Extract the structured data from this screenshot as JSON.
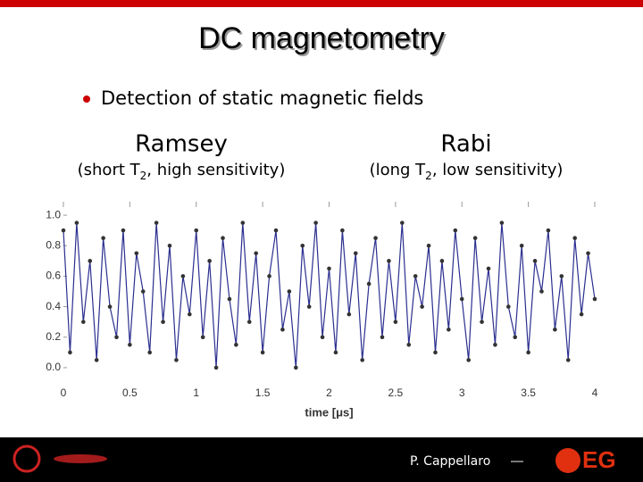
{
  "slide": {
    "title": "DC magnetometry",
    "bullet": "Detection of static magnetic fields",
    "columns": [
      {
        "heading": "Ramsey",
        "sub_prefix": "(short T",
        "sub_index": "2",
        "sub_suffix": ", high sensitivity)"
      },
      {
        "heading": "Rabi",
        "sub_prefix": "(long T",
        "sub_index": "2",
        "sub_suffix": ", low sensitivity)"
      }
    ],
    "author": "P. Cappellaro",
    "dash": "—",
    "logo_text": "EG"
  },
  "chart_data": {
    "type": "line",
    "x_label": "time [μs]",
    "xlim": [
      0,
      4
    ],
    "xticks": [
      0,
      0.5,
      1,
      1.5,
      2,
      2.5,
      3,
      3.5,
      4
    ],
    "ylim": [
      -0.1,
      1.1
    ],
    "yticks": [
      {
        "value": 0,
        "label": "0.0"
      },
      0.2,
      0.4,
      0.6,
      0.8,
      {
        "value": 1,
        "label": "1.0"
      }
    ],
    "x": [
      0,
      0.05,
      0.1,
      0.15,
      0.2,
      0.25,
      0.3,
      0.35,
      0.4,
      0.45,
      0.5,
      0.55,
      0.6,
      0.65,
      0.7,
      0.75,
      0.8,
      0.85,
      0.9,
      0.95,
      1,
      1.05,
      1.1,
      1.15,
      1.2,
      1.25,
      1.3,
      1.35,
      1.4,
      1.45,
      1.5,
      1.55,
      1.6,
      1.65,
      1.7,
      1.75,
      1.8,
      1.85,
      1.9,
      1.95,
      2,
      2.05,
      2.1,
      2.15,
      2.2,
      2.25,
      2.3,
      2.35,
      2.4,
      2.45,
      2.5,
      2.55,
      2.6,
      2.65,
      2.7,
      2.75,
      2.8,
      2.85,
      2.9,
      2.95,
      3,
      3.05,
      3.1,
      3.15,
      3.2,
      3.25,
      3.3,
      3.35,
      3.4,
      3.45,
      3.5,
      3.55,
      3.6,
      3.65,
      3.7,
      3.75,
      3.8,
      3.85,
      3.9,
      3.95,
      4
    ],
    "series": [
      {
        "color": "#2b2f8f",
        "values": [
          0.9,
          0.1,
          0.95,
          0.3,
          0.7,
          0.05,
          0.85,
          0.4,
          0.2,
          0.9,
          0.15,
          0.75,
          0.5,
          0.1,
          0.95,
          0.3,
          0.8,
          0.05,
          0.6,
          0.35,
          0.9,
          0.2,
          0.7,
          0.0,
          0.85,
          0.45,
          0.15,
          0.95,
          0.3,
          0.75,
          0.1,
          0.6,
          0.9,
          0.25,
          0.5,
          0.0,
          0.8,
          0.4,
          0.95,
          0.2,
          0.65,
          0.1,
          0.9,
          0.35,
          0.75,
          0.05,
          0.55,
          0.85,
          0.2,
          0.7,
          0.3,
          0.95,
          0.15,
          0.6,
          0.4,
          0.8,
          0.1,
          0.7,
          0.25,
          0.9,
          0.45,
          0.05,
          0.85,
          0.3,
          0.65,
          0.15,
          0.95,
          0.4,
          0.2,
          0.8,
          0.1,
          0.7,
          0.5,
          0.9,
          0.25,
          0.6,
          0.05,
          0.85,
          0.35,
          0.75,
          0.45
        ]
      }
    ]
  }
}
